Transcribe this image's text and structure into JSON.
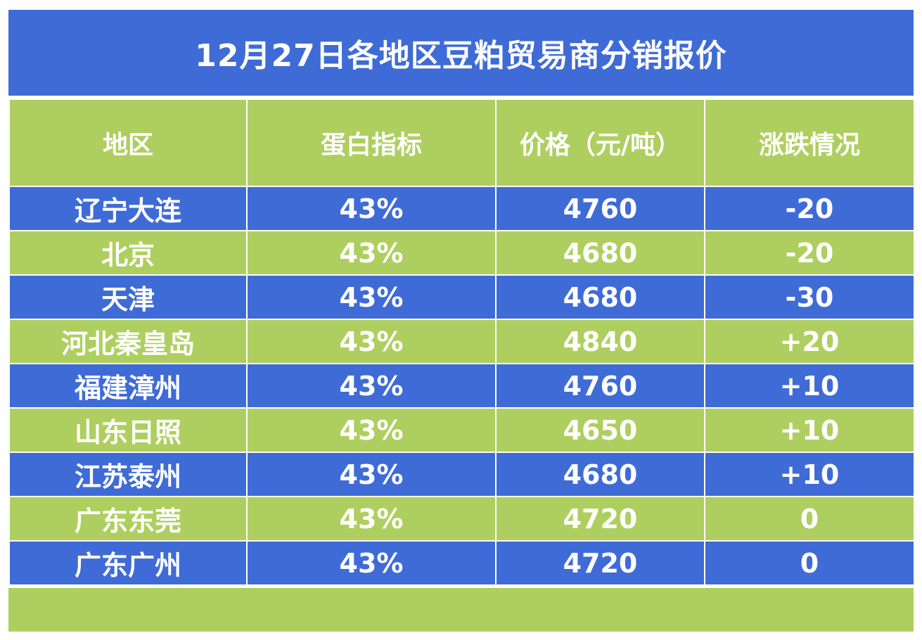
{
  "title": "12月27日各地区豆粕贸易商分销报价",
  "headers": [
    "地区",
    "蛋白指标",
    "价格（元/吨）",
    "涨跌情况"
  ],
  "rows": [
    {
      "region": "辽宁大连",
      "protein": "43%",
      "price": "4760",
      "change": "-20",
      "trend": "down"
    },
    {
      "region": "北京",
      "protein": "43%",
      "price": "4680",
      "change": "-20",
      "trend": "down"
    },
    {
      "region": "天津",
      "protein": "43%",
      "price": "4680",
      "change": "-30",
      "trend": "down"
    },
    {
      "region": "河北秦皇岛",
      "protein": "43%",
      "price": "4840",
      "change": "+20",
      "trend": "up"
    },
    {
      "region": "福建漳州",
      "protein": "43%",
      "price": "4760",
      "change": "+10",
      "trend": "up"
    },
    {
      "region": "山东日照",
      "protein": "43%",
      "price": "4650",
      "change": "+10",
      "trend": "up"
    },
    {
      "region": "江苏泰州",
      "protein": "43%",
      "price": "4680",
      "change": "+10",
      "trend": "up"
    },
    {
      "region": "广东东莞",
      "protein": "43%",
      "price": "4720",
      "change": "0",
      "trend": "flat"
    },
    {
      "region": "广东广州",
      "protein": "43%",
      "price": "4720",
      "change": "0",
      "trend": "flat"
    }
  ],
  "colors": {
    "blue": "#3f6bd6",
    "green": "#aecf5f",
    "up": "#ee1111",
    "down": "#1aa23a",
    "flat": "#ffffff"
  }
}
